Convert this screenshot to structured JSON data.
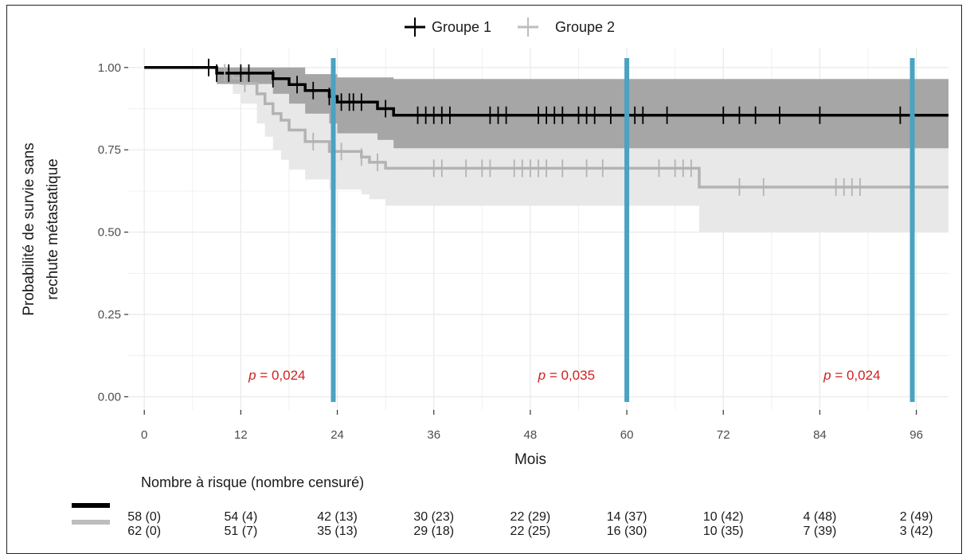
{
  "chart_data": {
    "type": "line",
    "subtype": "kaplan-meier",
    "xlabel": "Mois",
    "ylabel_lines": [
      "Probabilité de survie sans",
      "rechute métastatique"
    ],
    "x_ticks": [
      0,
      12,
      24,
      36,
      48,
      60,
      72,
      84,
      96
    ],
    "y_ticks": [
      0.0,
      0.25,
      0.5,
      0.75,
      1.0
    ],
    "y_tick_labels": [
      "0.00",
      "0.25",
      "0.50",
      "0.75",
      "1.00"
    ],
    "xlim": [
      -2,
      100
    ],
    "ylim": [
      -0.04,
      1.06
    ],
    "grid": true,
    "legend_position": "top",
    "series": [
      {
        "name": "Groupe 1",
        "color": "#000000",
        "ci_color": "#a6a6a6",
        "steps": [
          [
            0,
            1.0
          ],
          [
            9,
            0.983
          ],
          [
            16,
            0.966
          ],
          [
            18,
            0.948
          ],
          [
            20,
            0.93
          ],
          [
            23,
            0.912
          ],
          [
            24,
            0.895
          ],
          [
            29,
            0.875
          ],
          [
            31,
            0.855
          ],
          [
            100,
            0.855
          ]
        ],
        "ci_upper": [
          [
            0,
            1.0
          ],
          [
            9,
            1.0
          ],
          [
            20,
            0.98
          ],
          [
            24,
            0.97
          ],
          [
            31,
            0.965
          ],
          [
            100,
            0.965
          ]
        ],
        "ci_lower": [
          [
            0,
            1.0
          ],
          [
            9,
            0.95
          ],
          [
            16,
            0.92
          ],
          [
            18,
            0.89
          ],
          [
            20,
            0.86
          ],
          [
            23,
            0.83
          ],
          [
            24,
            0.8
          ],
          [
            29,
            0.78
          ],
          [
            31,
            0.755
          ],
          [
            100,
            0.755
          ]
        ],
        "censored": [
          8,
          9,
          10.5,
          12,
          13,
          16,
          19,
          21,
          23,
          24.5,
          25.5,
          26,
          27,
          30,
          34,
          35,
          36,
          37,
          38,
          43,
          44,
          45,
          49,
          50,
          51,
          52,
          54,
          55,
          56,
          58,
          61,
          62,
          65,
          72,
          74,
          76,
          79,
          84,
          94
        ]
      },
      {
        "name": "Groupe 2",
        "color": "#b3b3b3",
        "ci_color": "#e8e8e8",
        "steps": [
          [
            0,
            1.0
          ],
          [
            9,
            0.984
          ],
          [
            11,
            0.968
          ],
          [
            12,
            0.952
          ],
          [
            14,
            0.92
          ],
          [
            15,
            0.89
          ],
          [
            16,
            0.86
          ],
          [
            17,
            0.84
          ],
          [
            18,
            0.81
          ],
          [
            20,
            0.775
          ],
          [
            23,
            0.745
          ],
          [
            27,
            0.728
          ],
          [
            28,
            0.712
          ],
          [
            30,
            0.694
          ],
          [
            69,
            0.694
          ],
          [
            69,
            0.637
          ],
          [
            100,
            0.637
          ]
        ],
        "ci_upper": [
          [
            0,
            1.0
          ],
          [
            9,
            1.0
          ],
          [
            14,
            0.99
          ],
          [
            18,
            0.95
          ],
          [
            23,
            0.92
          ],
          [
            27,
            0.9
          ],
          [
            30,
            0.885
          ],
          [
            69,
            0.885
          ],
          [
            69,
            0.865
          ],
          [
            100,
            0.865
          ]
        ],
        "ci_lower": [
          [
            0,
            1.0
          ],
          [
            9,
            0.95
          ],
          [
            11,
            0.92
          ],
          [
            12,
            0.89
          ],
          [
            14,
            0.83
          ],
          [
            15,
            0.79
          ],
          [
            16,
            0.75
          ],
          [
            17,
            0.72
          ],
          [
            18,
            0.69
          ],
          [
            20,
            0.66
          ],
          [
            23,
            0.63
          ],
          [
            27,
            0.615
          ],
          [
            28,
            0.6
          ],
          [
            30,
            0.58
          ],
          [
            69,
            0.58
          ],
          [
            69,
            0.5
          ],
          [
            100,
            0.5
          ]
        ],
        "censored": [
          8,
          10,
          12.5,
          21,
          24.5,
          27,
          29,
          36,
          37,
          40,
          42,
          43,
          46,
          47,
          48,
          49,
          50,
          52,
          55,
          57,
          64,
          66,
          67,
          68,
          74,
          77,
          86,
          87,
          88,
          89
        ]
      }
    ],
    "vlines": {
      "x": [
        23.5,
        60,
        95.5
      ],
      "color": "#4aa3c2"
    },
    "annotations": [
      {
        "x": 16.5,
        "y": 0.052,
        "text": "p = 0,024"
      },
      {
        "x": 52.5,
        "y": 0.052,
        "text": "p = 0,035"
      },
      {
        "x": 88,
        "y": 0.052,
        "text": "p = 0,024"
      }
    ],
    "risk_table": {
      "title": "Nombre à risque (nombre censuré)",
      "times": [
        0,
        12,
        24,
        36,
        48,
        60,
        72,
        84,
        96
      ],
      "rows": [
        {
          "series": "Groupe 1",
          "values": [
            "58 (0)",
            "54 (4)",
            "42 (13)",
            "30 (23)",
            "22 (29)",
            "14 (37)",
            "10 (42)",
            "4 (48)",
            "2 (49)"
          ]
        },
        {
          "series": "Groupe 2",
          "values": [
            "62 (0)",
            "51 (7)",
            "35 (13)",
            "29 (18)",
            "22 (25)",
            "16 (30)",
            "10 (35)",
            "7 (39)",
            "3 (42)"
          ]
        }
      ]
    }
  }
}
